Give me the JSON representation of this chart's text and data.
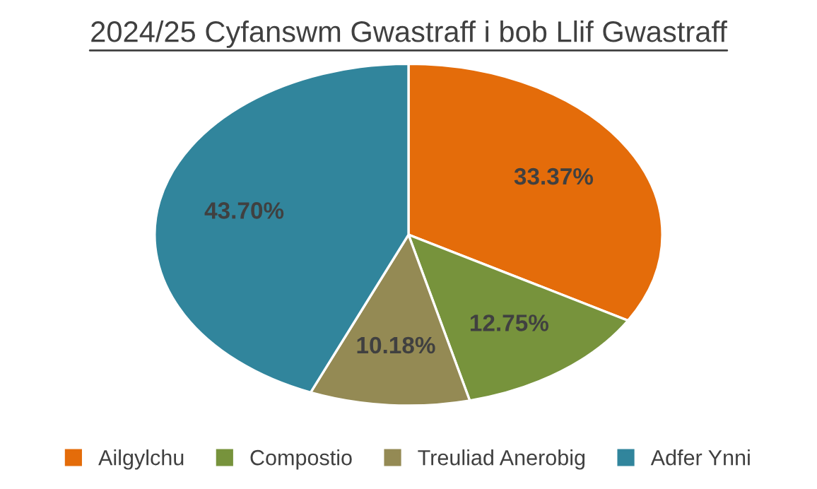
{
  "chart_data": {
    "type": "pie",
    "title": "2024/25 Cyfanswm Gwastraff i bob Llif Gwastraff",
    "categories": [
      "Ailgylchu",
      "Compostio",
      "Treuliad Anerobig",
      "Adfer Ynni"
    ],
    "values": [
      33.37,
      12.75,
      10.18,
      43.7
    ],
    "colors": [
      "#e46c0a",
      "#77933c",
      "#948a54",
      "#31859c"
    ],
    "value_labels": [
      "33.37%",
      "12.75%",
      "10.18%",
      "43.70%"
    ],
    "legend": "bottom"
  }
}
